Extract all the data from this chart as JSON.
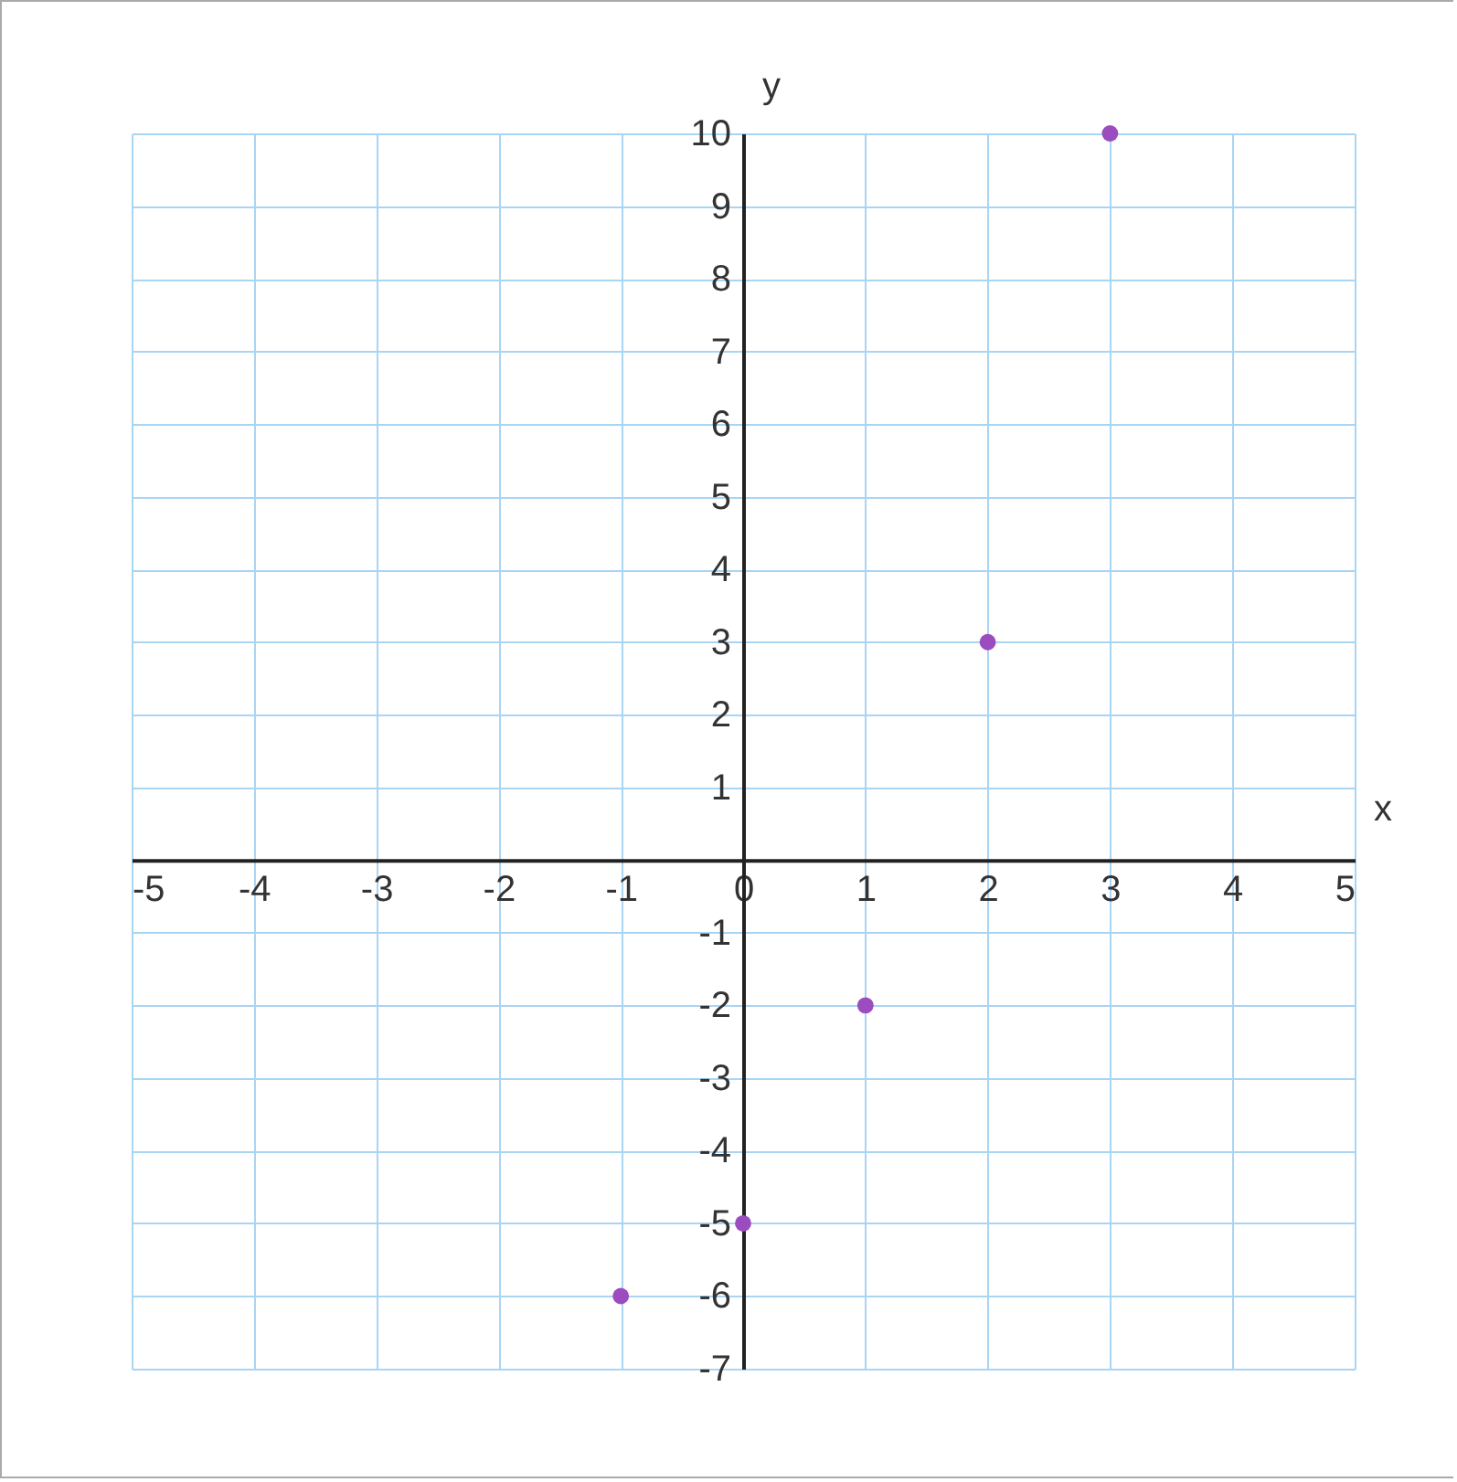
{
  "chart_data": {
    "type": "scatter",
    "xlabel": "x",
    "ylabel": "y",
    "x": [
      -1,
      0,
      1,
      2,
      3
    ],
    "values": [
      -6,
      -5,
      -2,
      3,
      10
    ],
    "color": "#9b4dbf",
    "marker": "circle",
    "xlim": [
      -5,
      5
    ],
    "ylim": [
      -7,
      10
    ],
    "xticks": [
      -5,
      -4,
      -3,
      -2,
      -1,
      0,
      1,
      2,
      3,
      4,
      5
    ],
    "yticks": [
      -7,
      -6,
      -5,
      -4,
      -3,
      -2,
      -1,
      {
        "value": 0,
        "label": null
      },
      1,
      2,
      3,
      4,
      5,
      6,
      7,
      8,
      9,
      10
    ],
    "grid": true
  }
}
